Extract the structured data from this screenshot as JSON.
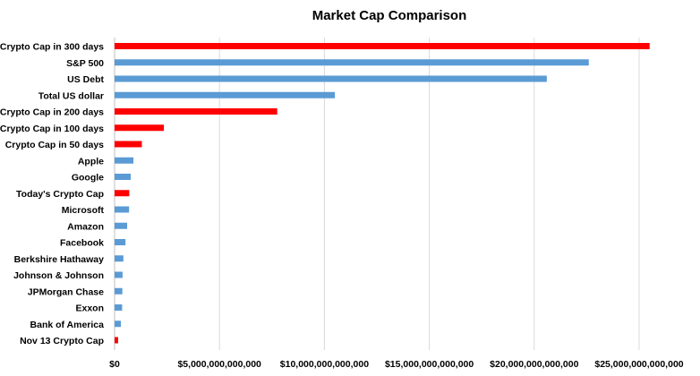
{
  "chart_data": {
    "type": "bar",
    "orientation": "horizontal",
    "title": "Market Cap Comparison",
    "xlabel": "",
    "ylabel": "",
    "xlim": [
      0,
      25000000000000
    ],
    "x_ticks": [
      0,
      5000000000000,
      10000000000000,
      15000000000000,
      20000000000000,
      25000000000000
    ],
    "x_tick_labels": [
      "$0",
      "$5,000,000,000,000",
      "$10,000,000,000,000",
      "$15,000,000,000,000",
      "$20,000,000,000,000",
      "$25,000,000,000,000"
    ],
    "grid": "vertical",
    "legend": "none",
    "colors": {
      "crypto": "#ff0000",
      "other": "#5b9bd5"
    },
    "categories": [
      "Crypto Cap in 300 days",
      "S&P 500",
      "US Debt",
      "Total US dollar",
      "Crypto Cap in 200 days",
      "Crypto Cap in 100 days",
      "Crypto Cap in 50 days",
      "Apple",
      "Google",
      "Today's Crypto Cap",
      "Microsoft",
      "Amazon",
      "Facebook",
      "Berkshire Hathaway",
      "Johnson & Johnson",
      "JPMorgan Chase",
      "Exxon",
      "Bank of America",
      "Nov 13 Crypto Cap"
    ],
    "values": [
      25500000000000,
      22600000000000,
      20600000000000,
      10500000000000,
      7750000000000,
      2350000000000,
      1300000000000,
      900000000000,
      770000000000,
      700000000000,
      690000000000,
      600000000000,
      520000000000,
      420000000000,
      380000000000,
      370000000000,
      360000000000,
      300000000000,
      170000000000
    ],
    "bar_color_keys": [
      "crypto",
      "other",
      "other",
      "other",
      "crypto",
      "crypto",
      "crypto",
      "other",
      "other",
      "crypto",
      "other",
      "other",
      "other",
      "other",
      "other",
      "other",
      "other",
      "other",
      "crypto"
    ]
  }
}
